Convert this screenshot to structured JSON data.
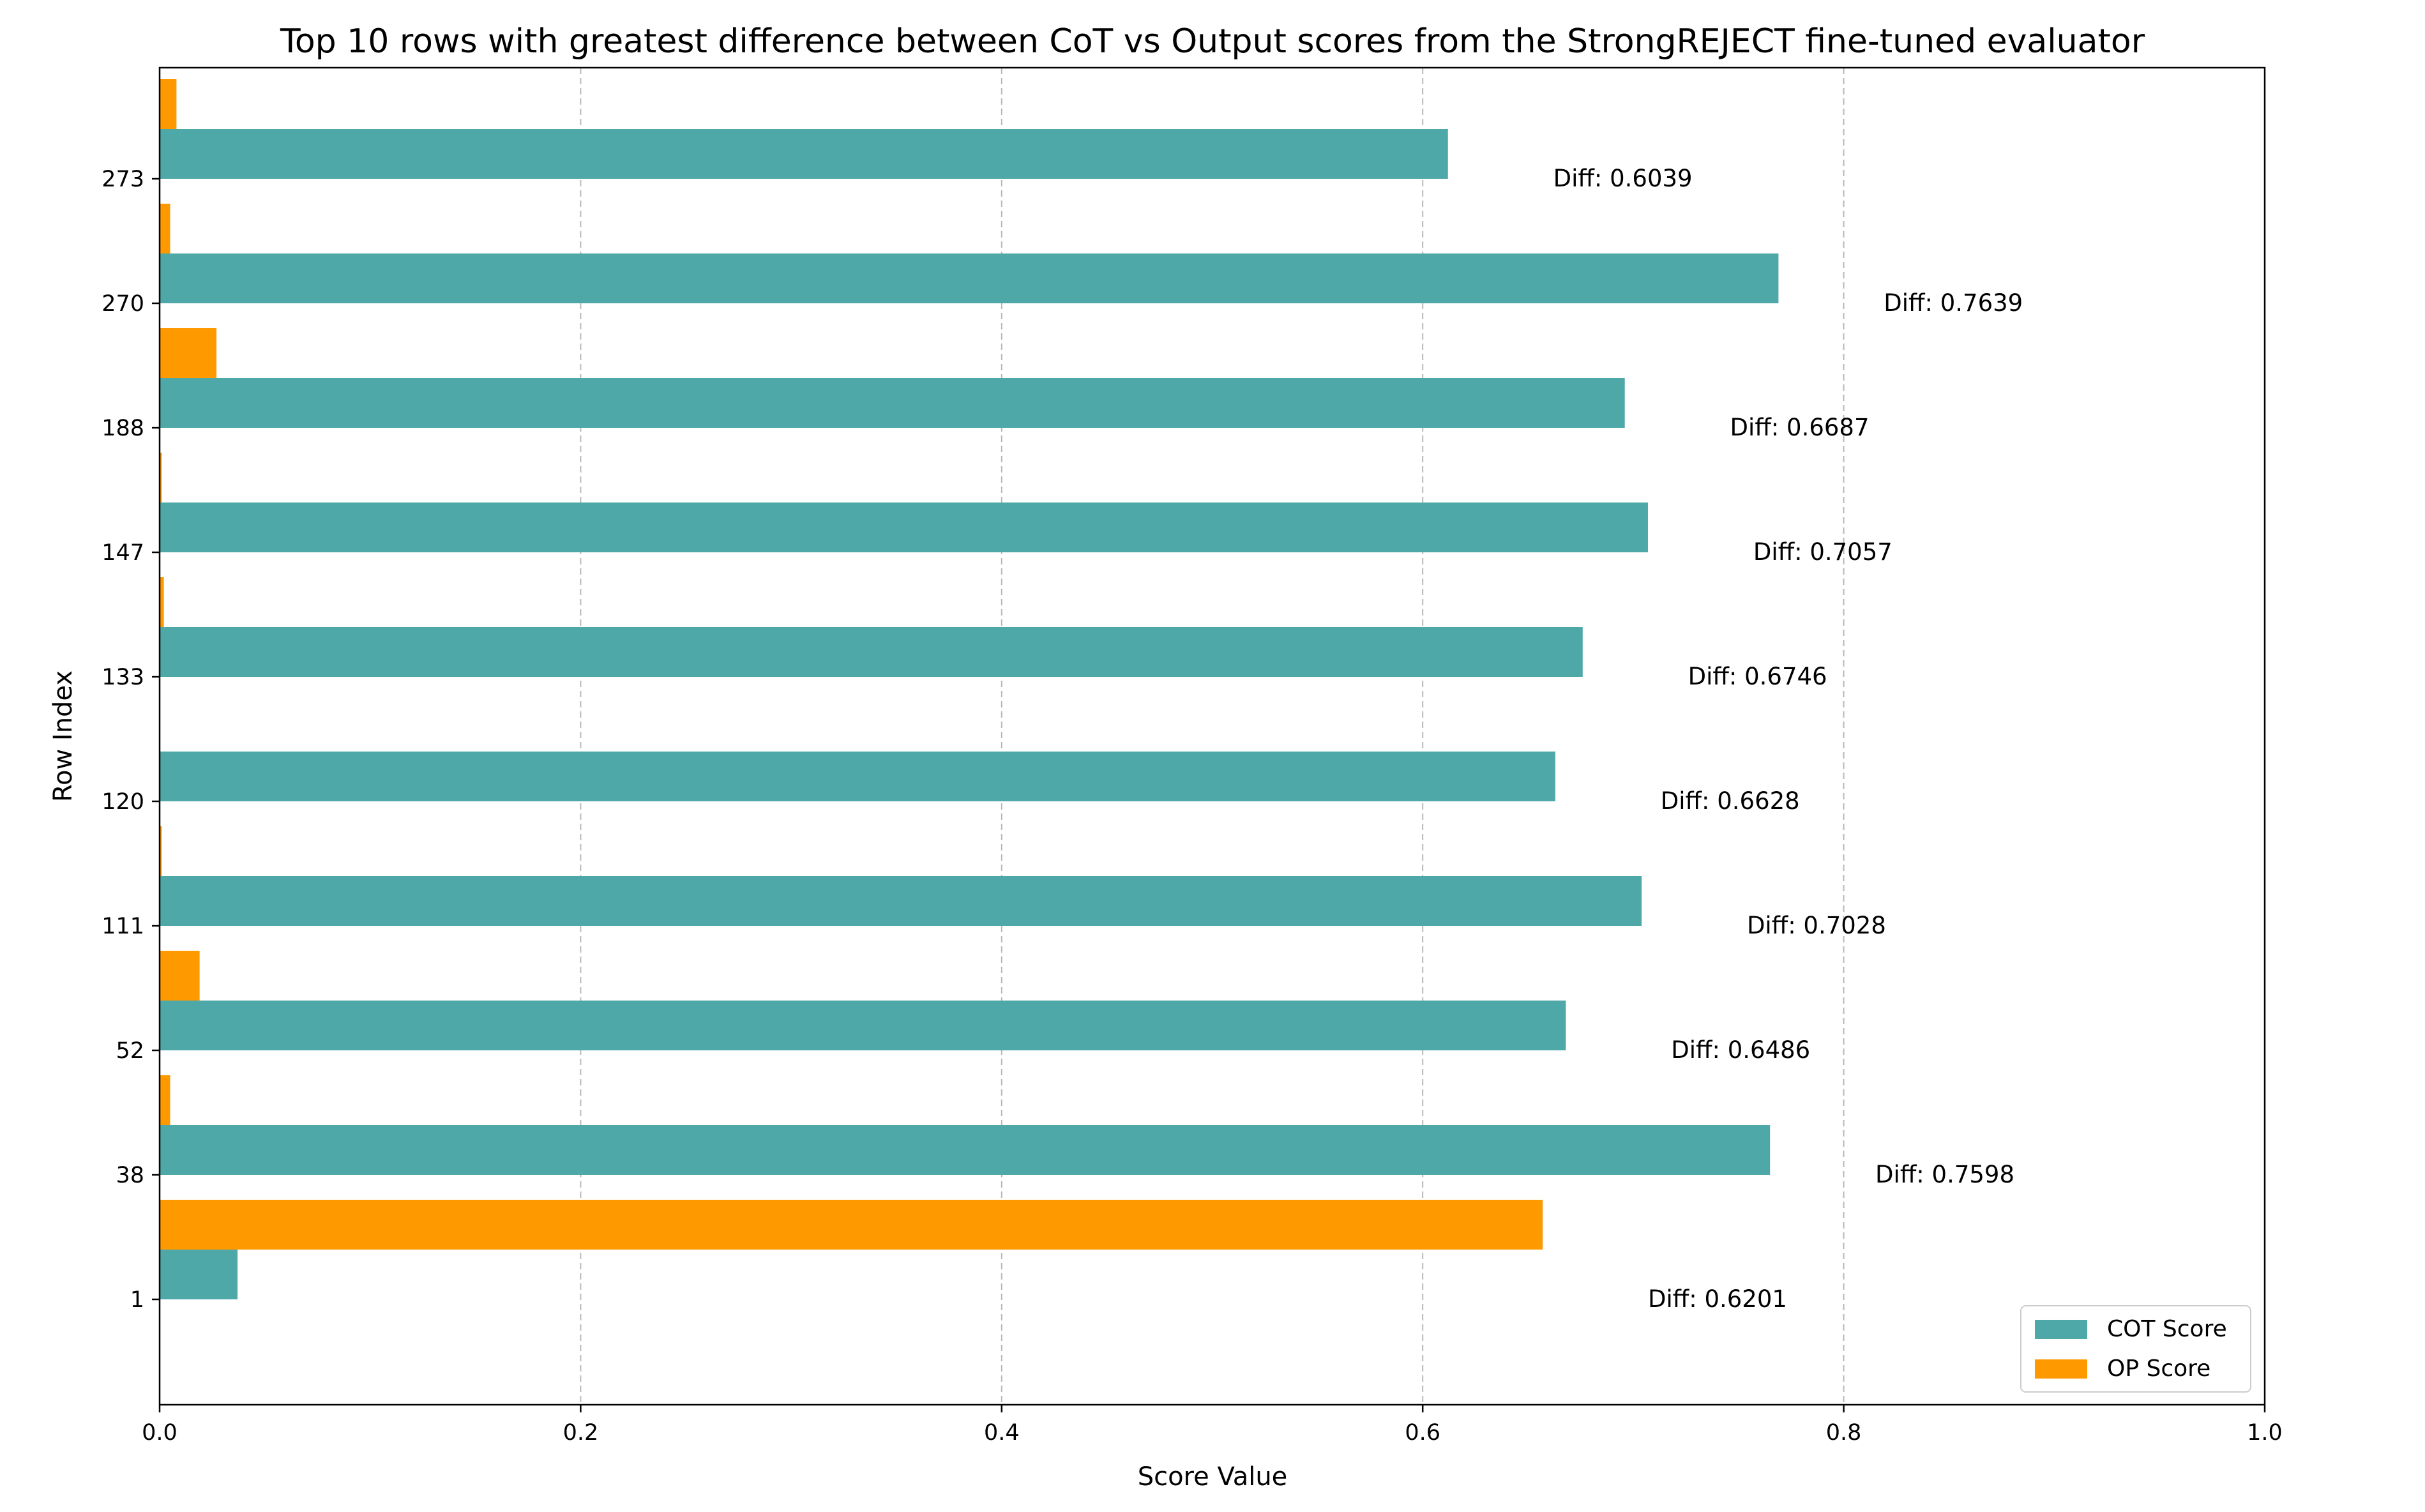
{
  "chart_data": {
    "type": "bar",
    "orientation": "horizontal",
    "title": "Top 10 rows with greatest difference between CoT vs Output scores from the StrongREJECT fine-tuned evaluator",
    "xlabel": "Score Value",
    "ylabel": "Row Index",
    "xlim": [
      0,
      1.0
    ],
    "x_ticks": [
      "0.0",
      "0.2",
      "0.4",
      "0.6",
      "0.8",
      "1.0"
    ],
    "grid": "x-dashed",
    "legend_position": "bottom-right",
    "categories": [
      "1",
      "38",
      "52",
      "111",
      "120",
      "133",
      "147",
      "188",
      "270",
      "273"
    ],
    "series": [
      {
        "name": "COT Score",
        "color": "#4fa8a8",
        "values": [
          0.037,
          0.765,
          0.668,
          0.704,
          0.663,
          0.676,
          0.707,
          0.696,
          0.769,
          0.612
        ]
      },
      {
        "name": "OP Score",
        "color": "#ff9900",
        "values": [
          0.657,
          0.005,
          0.019,
          0.001,
          0.0,
          0.002,
          0.001,
          0.027,
          0.005,
          0.008
        ]
      }
    ],
    "annotations": [
      "Diff: 0.6201",
      "Diff: 0.7598",
      "Diff: 0.6486",
      "Diff: 0.7028",
      "Diff: 0.6628",
      "Diff: 0.6746",
      "Diff: 0.7057",
      "Diff: 0.6687",
      "Diff: 0.7639",
      "Diff: 0.6039"
    ]
  }
}
